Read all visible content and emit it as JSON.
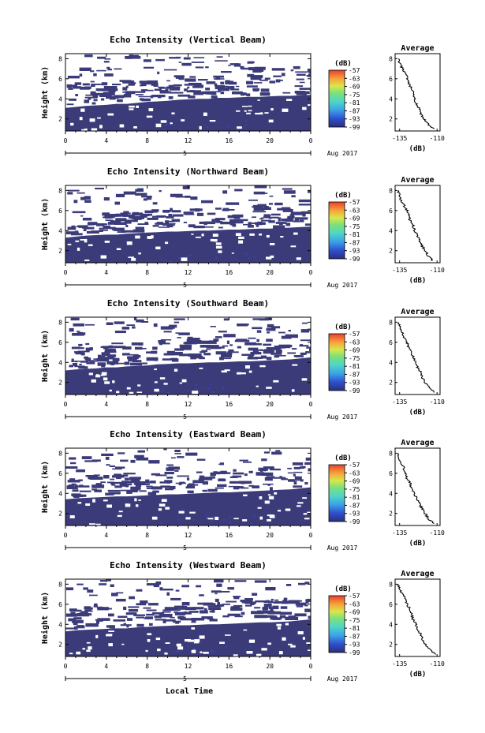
{
  "figure": {
    "x_axis_label": "Local Time",
    "date_label": "Aug 2017",
    "y_axis_label": "Height (km)",
    "colorbar_unit": "(dB)",
    "average_title": "Average",
    "average_xlabel": "(dB)"
  },
  "chart_data": [
    {
      "type": "heatmap",
      "title": "Echo Intensity (Vertical Beam)",
      "x_ticks": [
        "0",
        "4",
        "8",
        "12",
        "16",
        "20",
        "0"
      ],
      "x_range_hours": [
        0,
        24
      ],
      "y_ticks": [
        "8",
        "6",
        "4",
        "2"
      ],
      "y_range_km": [
        0.8,
        8.5
      ],
      "colorbar_ticks": [
        "-57",
        "-63",
        "-69",
        "-75",
        "-81",
        "-87",
        "-93",
        "-99"
      ],
      "colorbar_range_db": [
        -99,
        -57
      ],
      "boundary_km": [
        3.1,
        3.2,
        3.3,
        3.35,
        3.4,
        3.5,
        3.5,
        3.6,
        3.7,
        3.75,
        3.8,
        3.9,
        3.95,
        4.0,
        4.0,
        4.1,
        4.1,
        4.15,
        4.2,
        4.2,
        4.25,
        4.3,
        4.3,
        4.35,
        4.4
      ],
      "average": {
        "x_ticks": [
          "-135",
          "-110"
        ],
        "x_range_db": [
          -138,
          -108
        ],
        "y_ticks": [
          "8",
          "6",
          "4",
          "2"
        ],
        "y_range_km": [
          0.8,
          8.5
        ],
        "height_km": [
          8.0,
          7.5,
          7.0,
          6.5,
          6.0,
          5.5,
          5.0,
          4.5,
          4.0,
          3.5,
          3.0,
          2.5,
          2.0,
          1.5,
          1.0
        ],
        "value_db": [
          -136,
          -135,
          -133,
          -131,
          -130,
          -129,
          -127,
          -126,
          -125,
          -124,
          -122,
          -121,
          -119,
          -116,
          -112
        ]
      }
    },
    {
      "type": "heatmap",
      "title": "Echo Intensity (Northward Beam)",
      "x_ticks": [
        "0",
        "4",
        "8",
        "12",
        "16",
        "20",
        "0"
      ],
      "x_range_hours": [
        0,
        24
      ],
      "y_ticks": [
        "8",
        "6",
        "4",
        "2"
      ],
      "y_range_km": [
        0.8,
        8.5
      ],
      "colorbar_ticks": [
        "-57",
        "-63",
        "-69",
        "-75",
        "-81",
        "-87",
        "-93",
        "-99"
      ],
      "colorbar_range_db": [
        -99,
        -57
      ],
      "boundary_km": [
        3.3,
        3.4,
        3.5,
        3.55,
        3.6,
        3.6,
        3.7,
        3.75,
        3.8,
        3.85,
        3.9,
        3.9,
        3.95,
        4.0,
        4.0,
        4.05,
        4.1,
        4.1,
        4.15,
        4.2,
        4.2,
        4.25,
        4.3,
        4.35,
        4.4
      ],
      "average": {
        "x_ticks": [
          "-135",
          "-110"
        ],
        "x_range_db": [
          -138,
          -108
        ],
        "y_ticks": [
          "8",
          "6",
          "4",
          "2"
        ],
        "y_range_km": [
          0.8,
          8.5
        ],
        "height_km": [
          8.0,
          7.5,
          7.0,
          6.5,
          6.0,
          5.5,
          5.0,
          4.5,
          4.0,
          3.5,
          3.0,
          2.5,
          2.0,
          1.5,
          1.0
        ],
        "value_db": [
          -136,
          -135,
          -134,
          -132,
          -130,
          -129,
          -128,
          -126,
          -125,
          -123,
          -122,
          -120,
          -118,
          -116,
          -113
        ]
      }
    },
    {
      "type": "heatmap",
      "title": "Echo Intensity (Southward Beam)",
      "x_ticks": [
        "0",
        "4",
        "8",
        "12",
        "16",
        "20",
        "0"
      ],
      "x_range_hours": [
        0,
        24
      ],
      "y_ticks": [
        "8",
        "6",
        "4",
        "2"
      ],
      "y_range_km": [
        0.8,
        8.5
      ],
      "colorbar_ticks": [
        "-57",
        "-63",
        "-69",
        "-75",
        "-81",
        "-87",
        "-93",
        "-99"
      ],
      "colorbar_range_db": [
        -99,
        -57
      ],
      "boundary_km": [
        3.2,
        3.3,
        3.35,
        3.4,
        3.5,
        3.5,
        3.6,
        3.65,
        3.7,
        3.8,
        3.85,
        3.9,
        3.9,
        3.95,
        4.0,
        4.0,
        4.05,
        4.1,
        4.1,
        4.15,
        4.2,
        4.25,
        4.3,
        4.4,
        4.5
      ],
      "average": {
        "x_ticks": [
          "-135",
          "-110"
        ],
        "x_range_db": [
          -138,
          -108
        ],
        "y_ticks": [
          "8",
          "6",
          "4",
          "2"
        ],
        "y_range_km": [
          0.8,
          8.5
        ],
        "height_km": [
          8.0,
          7.5,
          7.0,
          6.5,
          6.0,
          5.5,
          5.0,
          4.5,
          4.0,
          3.5,
          3.0,
          2.5,
          2.0,
          1.5,
          1.0
        ],
        "value_db": [
          -136,
          -135,
          -133,
          -132,
          -130,
          -129,
          -127,
          -126,
          -124,
          -123,
          -121,
          -120,
          -118,
          -115,
          -112
        ]
      }
    },
    {
      "type": "heatmap",
      "title": "Echo Intensity (Eastward Beam)",
      "x_ticks": [
        "0",
        "4",
        "8",
        "12",
        "16",
        "20",
        "0"
      ],
      "x_range_hours": [
        0,
        24
      ],
      "y_ticks": [
        "8",
        "6",
        "4",
        "2"
      ],
      "y_range_km": [
        0.8,
        8.5
      ],
      "colorbar_ticks": [
        "-57",
        "-63",
        "-69",
        "-75",
        "-81",
        "-87",
        "-93",
        "-99"
      ],
      "colorbar_range_db": [
        -99,
        -57
      ],
      "boundary_km": [
        3.4,
        3.5,
        3.55,
        3.6,
        3.65,
        3.7,
        3.7,
        3.75,
        3.8,
        3.85,
        3.9,
        3.9,
        3.95,
        4.0,
        4.05,
        4.1,
        4.1,
        4.15,
        4.2,
        4.25,
        4.3,
        4.35,
        4.4,
        4.5,
        4.6
      ],
      "average": {
        "x_ticks": [
          "-135",
          "-110"
        ],
        "x_range_db": [
          -138,
          -108
        ],
        "y_ticks": [
          "8",
          "6",
          "4",
          "2"
        ],
        "y_range_km": [
          0.8,
          8.5
        ],
        "height_km": [
          8.0,
          7.5,
          7.0,
          6.5,
          6.0,
          5.5,
          5.0,
          4.5,
          4.0,
          3.5,
          3.0,
          2.5,
          2.0,
          1.5,
          1.0
        ],
        "value_db": [
          -136,
          -135,
          -134,
          -132,
          -131,
          -130,
          -128,
          -127,
          -125,
          -124,
          -122,
          -120,
          -118,
          -116,
          -112
        ]
      }
    },
    {
      "type": "heatmap",
      "title": "Echo Intensity (Westward Beam)",
      "x_ticks": [
        "0",
        "4",
        "8",
        "12",
        "16",
        "20",
        "0"
      ],
      "x_range_hours": [
        0,
        24
      ],
      "y_ticks": [
        "8",
        "6",
        "4",
        "2"
      ],
      "y_range_km": [
        0.8,
        8.5
      ],
      "colorbar_ticks": [
        "-57",
        "-63",
        "-69",
        "-75",
        "-81",
        "-87",
        "-93",
        "-99"
      ],
      "colorbar_range_db": [
        -99,
        -57
      ],
      "boundary_km": [
        3.3,
        3.4,
        3.45,
        3.5,
        3.55,
        3.6,
        3.6,
        3.7,
        3.75,
        3.8,
        3.85,
        3.9,
        3.9,
        3.95,
        4.0,
        4.0,
        4.05,
        4.1,
        4.15,
        4.2,
        4.2,
        4.25,
        4.3,
        4.4,
        4.5
      ],
      "average": {
        "x_ticks": [
          "-135",
          "-110"
        ],
        "x_range_db": [
          -138,
          -108
        ],
        "y_ticks": [
          "8",
          "6",
          "4",
          "2"
        ],
        "y_range_km": [
          0.8,
          8.5
        ],
        "height_km": [
          8.0,
          7.5,
          7.0,
          6.5,
          6.0,
          5.5,
          5.0,
          4.5,
          4.0,
          3.5,
          3.0,
          2.5,
          2.0,
          1.5,
          1.0
        ],
        "value_db": [
          -136,
          -135,
          -133,
          -131,
          -130,
          -128,
          -127,
          -126,
          -124,
          -123,
          -121,
          -120,
          -118,
          -115,
          -111
        ]
      }
    }
  ]
}
